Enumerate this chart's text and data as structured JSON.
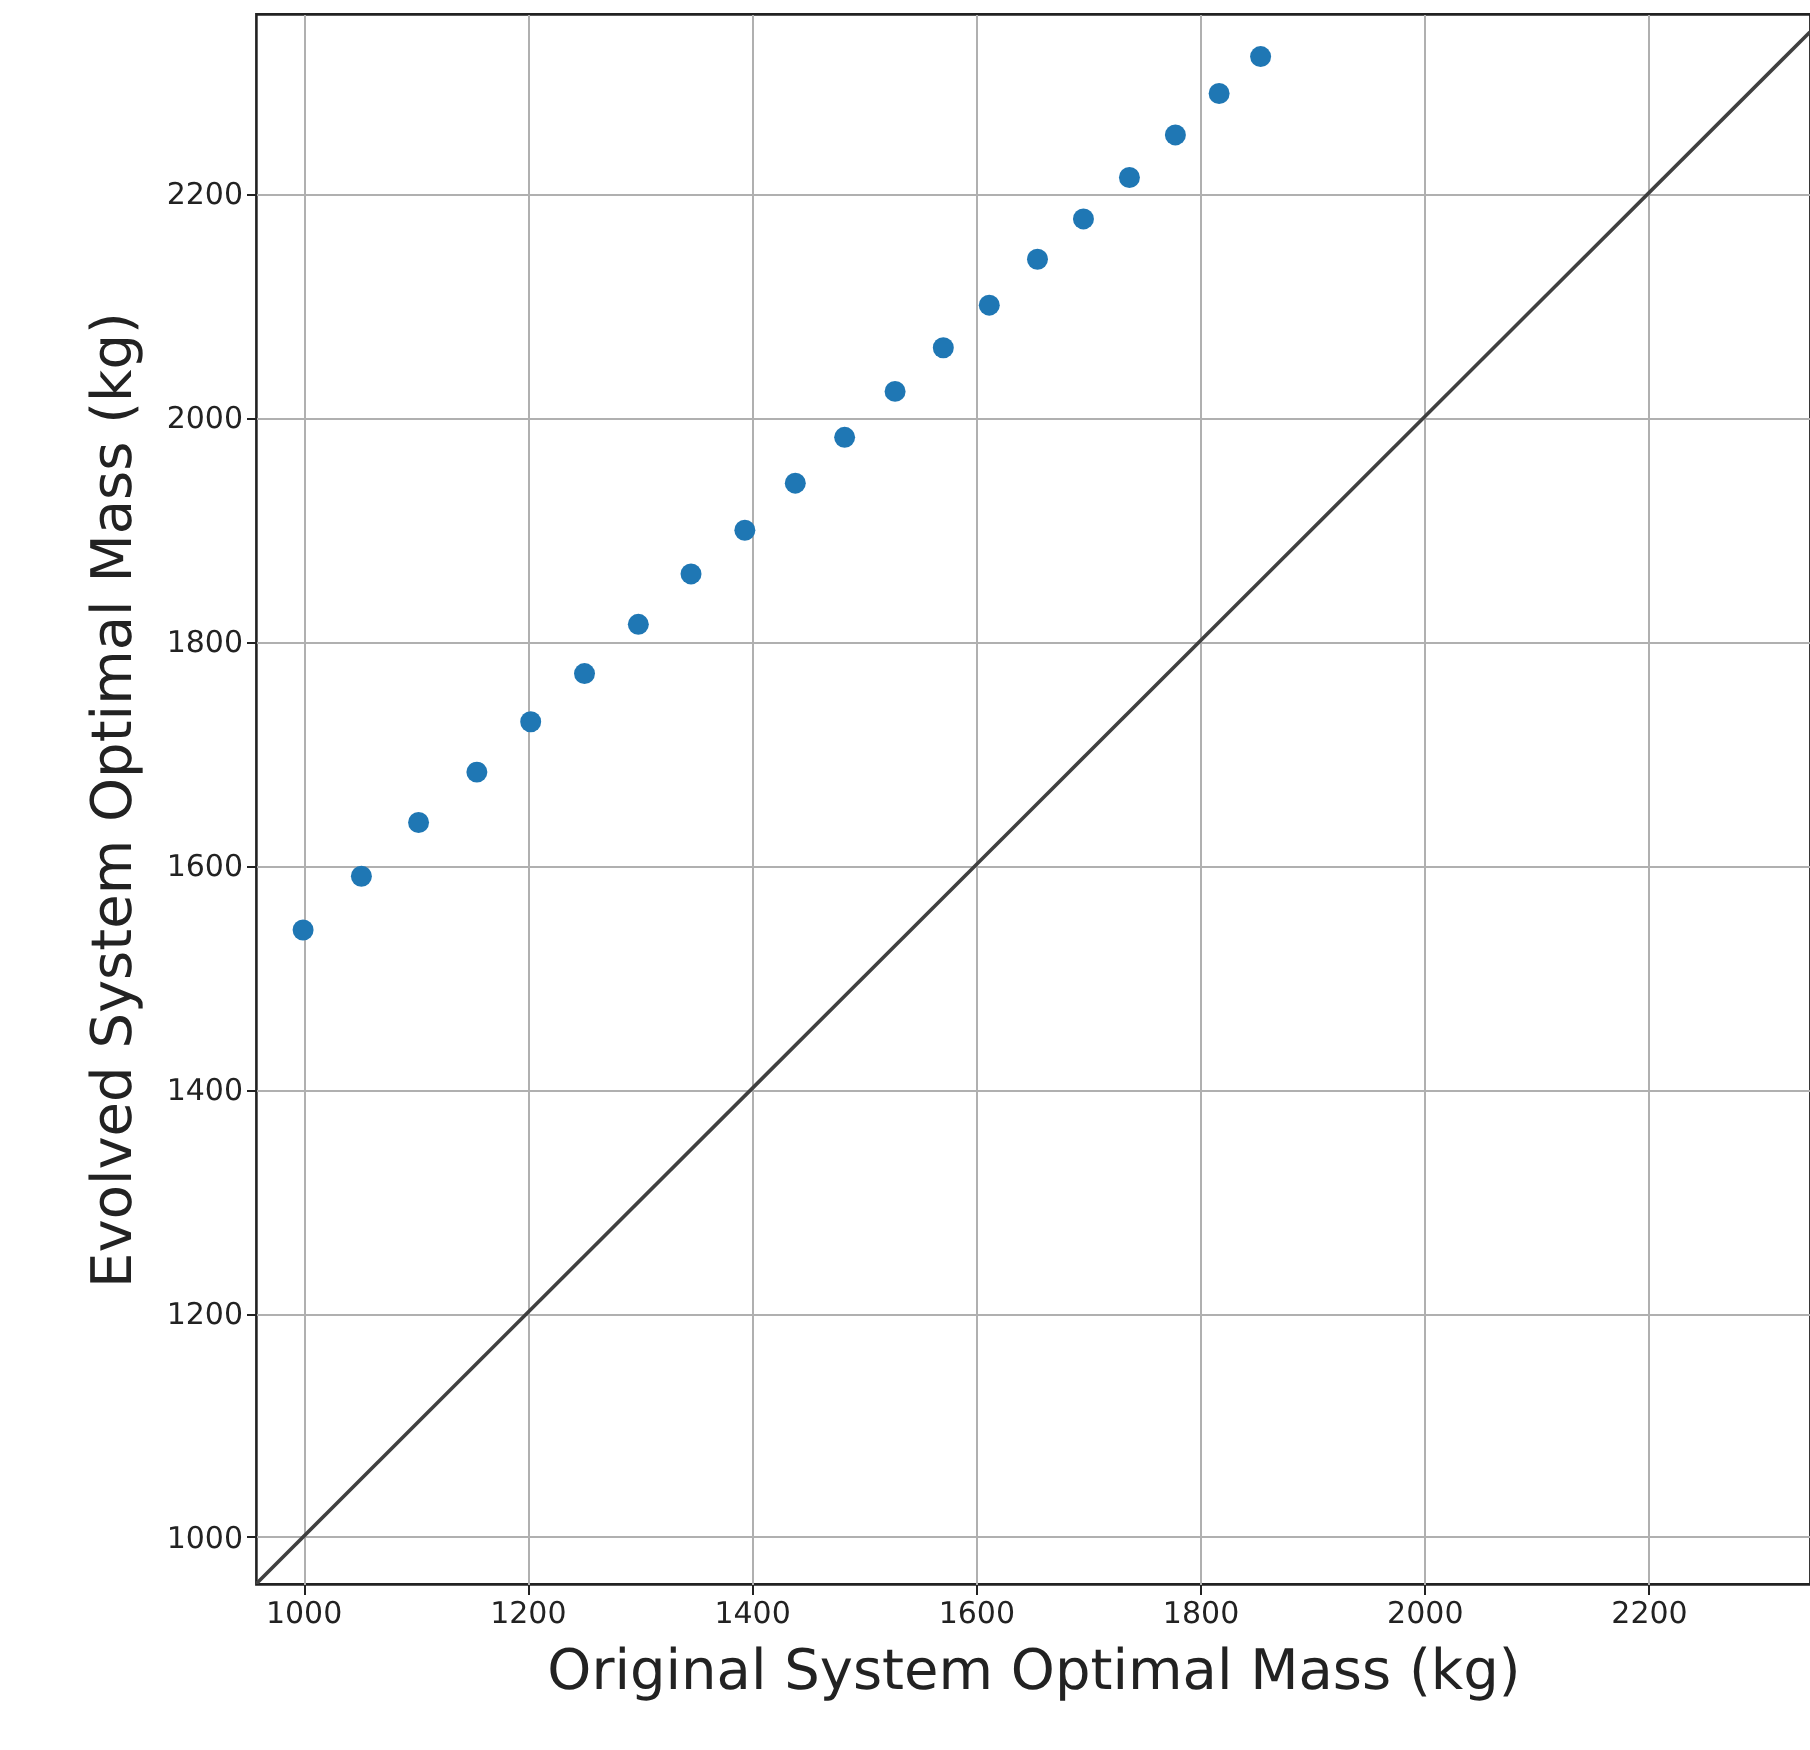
{
  "chart_data": {
    "type": "scatter",
    "xlabel": "Original System Optimal Mass (kg)",
    "ylabel": "Evolved System Optimal Mass (kg)",
    "xlim": [
      958,
      2344
    ],
    "ylim": [
      958,
      2360
    ],
    "xticks": [
      1000,
      1200,
      1400,
      1600,
      1800,
      2000,
      2200
    ],
    "yticks": [
      1000,
      1200,
      1400,
      1600,
      1800,
      2000,
      2200
    ],
    "grid": true,
    "series": [
      {
        "marker": "circle",
        "color": "#1f77b4",
        "x": [
          1000,
          1052,
          1103,
          1155,
          1203,
          1251,
          1299,
          1346,
          1394,
          1439,
          1483,
          1528,
          1571,
          1612,
          1655,
          1696,
          1737,
          1778,
          1817,
          1854
        ],
        "values": [
          1542,
          1590,
          1638,
          1683,
          1728,
          1771,
          1815,
          1860,
          1899,
          1941,
          1982,
          2023,
          2062,
          2100,
          2141,
          2177,
          2214,
          2252,
          2289,
          2322
        ]
      },
      {
        "type": "line",
        "color": "#404040",
        "x": [
          958,
          2344
        ],
        "values": [
          958,
          2344
        ]
      }
    ]
  }
}
